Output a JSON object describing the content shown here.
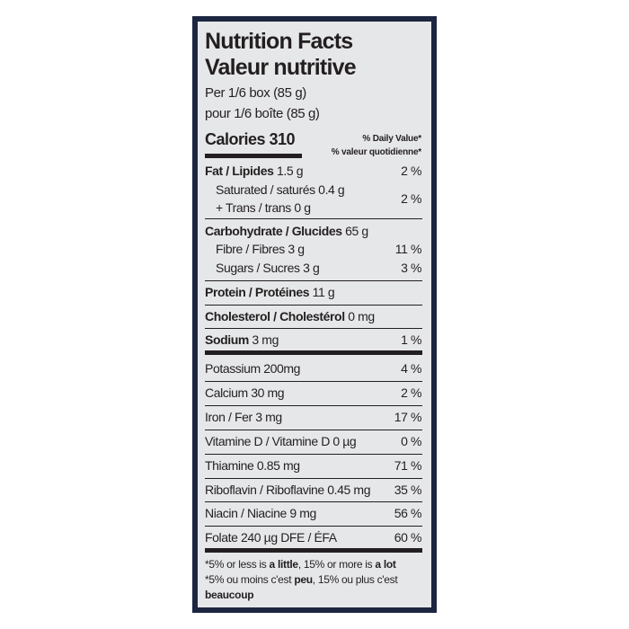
{
  "title_en": "Nutrition Facts",
  "title_fr": "Valeur nutritive",
  "serving_en": "Per 1/6 box (85 g)",
  "serving_fr": "pour 1/6 boîte (85 g)",
  "calories": "Calories 310",
  "dv_en": "% Daily Value*",
  "dv_fr": "% valeur quotidienne*",
  "nutrients": [
    {
      "name": "Fat / Lipides",
      "amount": " 1.5 g",
      "dv": "2 %"
    },
    {
      "name": "Saturated / saturés 0.4 g",
      "amount": "",
      "dv": "2 %"
    },
    {
      "name": "+ Trans / trans 0 g",
      "amount": "",
      "dv": ""
    },
    {
      "name": "Carbohydrate / Glucides",
      "amount": " 65 g",
      "dv": ""
    },
    {
      "name": "Fibre / Fibres 3 g",
      "amount": "",
      "dv": "11 %"
    },
    {
      "name": "Sugars / Sucres 3 g",
      "amount": "",
      "dv": "3 %"
    },
    {
      "name": "Protein / Protéines",
      "amount": " 11 g",
      "dv": ""
    },
    {
      "name": "Cholesterol / Cholestérol",
      "amount": " 0 mg",
      "dv": ""
    },
    {
      "name": "Sodium",
      "amount": " 3 mg",
      "dv": "1 %"
    }
  ],
  "vitamins": [
    {
      "name": "Potassium 200mg",
      "dv": "4 %"
    },
    {
      "name": "Calcium 30 mg",
      "dv": "2 %"
    },
    {
      "name": "Iron / Fer 3 mg",
      "dv": "17 %"
    },
    {
      "name": "Vitamine D / Vitamine D 0 µg",
      "dv": "0 %"
    },
    {
      "name": "Thiamine 0.85 mg",
      "dv": "71 %"
    },
    {
      "name": "Riboflavin / Riboflavine 0.45 mg",
      "dv": "35 %"
    },
    {
      "name": "Niacin / Niacine 9 mg",
      "dv": "56 %"
    },
    {
      "name": "Folate 240 µg DFE / ÉFA",
      "dv": "60 %"
    }
  ],
  "footnote": {
    "en_1": "*5% or less is ",
    "en_b1": "a little",
    "en_2": ", 15% or more is ",
    "en_b2": "a lot",
    "fr_1": "*5% ou moins c'est ",
    "fr_b1": "peu",
    "fr_2": ", 15% ou plus c'est",
    "fr_b2": "beaucoup"
  },
  "colors": {
    "frame": "#1c2640",
    "label_bg": "#e6e7e9",
    "text": "#231f20"
  }
}
